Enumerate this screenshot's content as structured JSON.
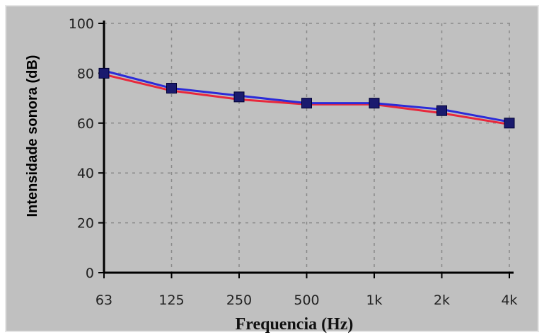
{
  "chart_data": {
    "type": "line",
    "categories": [
      "63",
      "125",
      "250",
      "500",
      "1k",
      "2k",
      "4k"
    ],
    "series": [
      {
        "values": [
          81,
          74,
          71,
          68,
          68,
          65.5,
          60.5
        ],
        "color": "#2b2bd8"
      },
      {
        "values": [
          79.5,
          73,
          69.5,
          67.5,
          67.5,
          64,
          59.5
        ],
        "color": "#e8283c"
      }
    ],
    "marker_color": "#1a1a6e",
    "marker_values": [
      80,
      74,
      70.5,
      68,
      68,
      65,
      60
    ],
    "xlabel": "Frequencia (Hz)",
    "ylabel": "Intensidade sonora (dB)",
    "ylim": [
      0,
      100
    ],
    "yticks": [
      0,
      20,
      40,
      60,
      80,
      100
    ],
    "grid": true,
    "background": "#c0c0c0",
    "grid_color": "#8a8a8a"
  }
}
